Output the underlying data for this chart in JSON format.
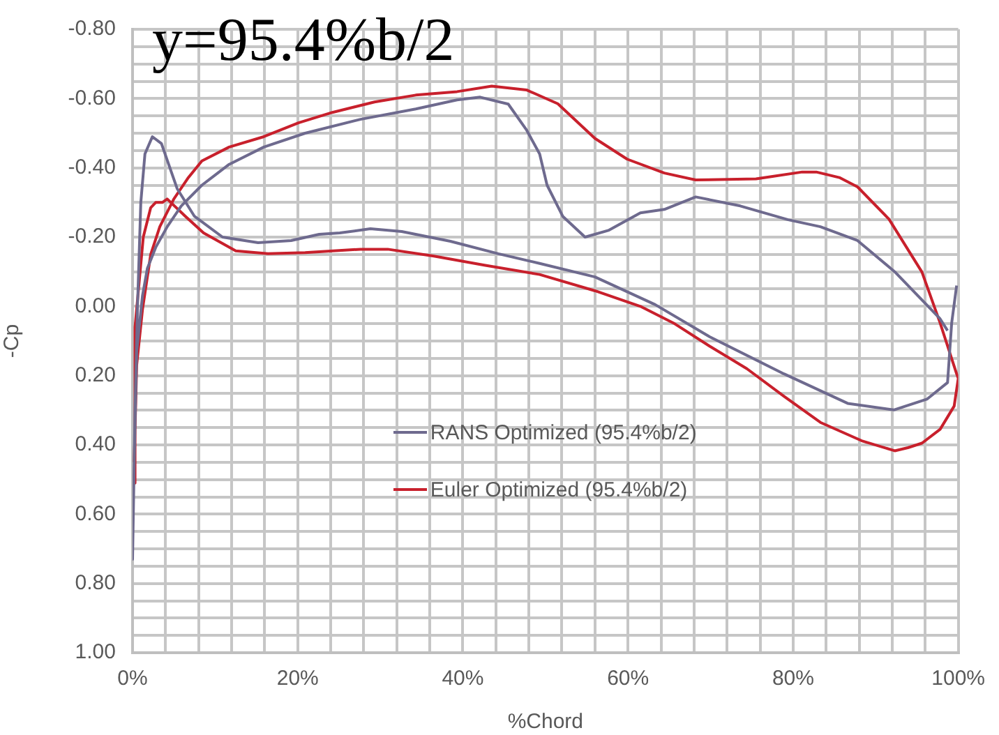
{
  "chart_data": {
    "type": "line",
    "title": "y=95.4%b/2",
    "xlabel": "%Chord",
    "ylabel": "-Cp",
    "xlim": [
      0,
      100
    ],
    "xticks": [
      {
        "value": 0,
        "label": "0%"
      },
      {
        "value": 4,
        "label": null
      },
      {
        "value": 8,
        "label": null
      },
      {
        "value": 12,
        "label": null
      },
      {
        "value": 16,
        "label": null
      },
      {
        "value": 20,
        "label": "20%"
      },
      {
        "value": 24,
        "label": null
      },
      {
        "value": 28,
        "label": null
      },
      {
        "value": 32,
        "label": null
      },
      {
        "value": 36,
        "label": null
      },
      {
        "value": 40,
        "label": "40%"
      },
      {
        "value": 44,
        "label": null
      },
      {
        "value": 48,
        "label": null
      },
      {
        "value": 52,
        "label": null
      },
      {
        "value": 56,
        "label": null
      },
      {
        "value": 60,
        "label": "60%"
      },
      {
        "value": 64,
        "label": null
      },
      {
        "value": 68,
        "label": null
      },
      {
        "value": 72,
        "label": null
      },
      {
        "value": 76,
        "label": null
      },
      {
        "value": 80,
        "label": "80%"
      },
      {
        "value": 84,
        "label": null
      },
      {
        "value": 88,
        "label": null
      },
      {
        "value": 92,
        "label": null
      },
      {
        "value": 96,
        "label": null
      },
      {
        "value": 100,
        "label": "100%"
      }
    ],
    "ylim": [
      1.0,
      -0.8
    ],
    "yticks": [
      {
        "value": -0.8,
        "label": "-0.80"
      },
      {
        "value": -0.75,
        "label": null
      },
      {
        "value": -0.7,
        "label": null
      },
      {
        "value": -0.65,
        "label": null
      },
      {
        "value": -0.6,
        "label": "-0.60"
      },
      {
        "value": -0.55,
        "label": null
      },
      {
        "value": -0.5,
        "label": null
      },
      {
        "value": -0.45,
        "label": null
      },
      {
        "value": -0.4,
        "label": "-0.40"
      },
      {
        "value": -0.35,
        "label": null
      },
      {
        "value": -0.3,
        "label": null
      },
      {
        "value": -0.25,
        "label": null
      },
      {
        "value": -0.2,
        "label": "-0.20"
      },
      {
        "value": -0.15,
        "label": null
      },
      {
        "value": -0.1,
        "label": null
      },
      {
        "value": -0.05,
        "label": null
      },
      {
        "value": 0,
        "label": "0.00"
      },
      {
        "value": 0.05,
        "label": null
      },
      {
        "value": 0.1,
        "label": null
      },
      {
        "value": 0.15,
        "label": null
      },
      {
        "value": 0.2,
        "label": "0.20"
      },
      {
        "value": 0.25,
        "label": null
      },
      {
        "value": 0.3,
        "label": null
      },
      {
        "value": 0.35,
        "label": null
      },
      {
        "value": 0.4,
        "label": "0.40"
      },
      {
        "value": 0.45,
        "label": null
      },
      {
        "value": 0.5,
        "label": null
      },
      {
        "value": 0.55,
        "label": null
      },
      {
        "value": 0.6,
        "label": "0.60"
      },
      {
        "value": 0.65,
        "label": null
      },
      {
        "value": 0.7,
        "label": null
      },
      {
        "value": 0.75,
        "label": null
      },
      {
        "value": 0.8,
        "label": "0.80"
      },
      {
        "value": 0.85,
        "label": null
      },
      {
        "value": 0.9,
        "label": null
      },
      {
        "value": 0.95,
        "label": null
      },
      {
        "value": 1.0,
        "label": "1.00"
      }
    ],
    "grid": true,
    "legend": "center",
    "marker": "none",
    "line_style": "solid",
    "series": [
      {
        "name": "RANS Optimized (95.4%b/2)",
        "color": "#6e6a8e",
        "x": [
          98.7,
          97.8,
          92.3,
          87.8,
          83.3,
          79.4,
          73.6,
          68.2,
          64.4,
          61.5,
          57.7,
          54.8,
          52.1,
          50.2,
          49.3,
          47.7,
          45.5,
          42.1,
          39.3,
          34.3,
          27.6,
          20.9,
          15.9,
          11.7,
          8.4,
          5.9,
          4.2,
          2.8,
          1.8,
          1.2,
          0.5,
          0.2,
          0,
          0.3,
          0.6,
          1,
          1.5,
          2.4,
          3.5,
          5.4,
          7.5,
          10.9,
          15.2,
          19.2,
          22.6,
          25.1,
          28.8,
          32.6,
          38.5,
          44.3,
          49.3,
          56,
          63.3,
          69.9,
          78.9,
          86.6,
          92.2,
          96.2,
          98.7,
          99.2,
          99.8
        ],
        "values": [
          0.07,
          0.036,
          -0.1,
          -0.19,
          -0.23,
          -0.25,
          -0.29,
          -0.316,
          -0.28,
          -0.27,
          -0.22,
          -0.2,
          -0.26,
          -0.35,
          -0.44,
          -0.51,
          -0.584,
          -0.604,
          -0.596,
          -0.57,
          -0.54,
          -0.5,
          -0.46,
          -0.41,
          -0.35,
          -0.29,
          -0.23,
          -0.17,
          -0.11,
          -0.03,
          0.13,
          0.45,
          0.73,
          0.3,
          0,
          -0.3,
          -0.44,
          -0.49,
          -0.47,
          -0.34,
          -0.26,
          -0.2,
          -0.184,
          -0.19,
          -0.208,
          -0.212,
          -0.224,
          -0.216,
          -0.188,
          -0.152,
          -0.124,
          -0.085,
          -0.005,
          0.088,
          0.195,
          0.28,
          0.299,
          0.268,
          0.22,
          0.048,
          -0.06
        ]
      },
      {
        "name": "Euler Optimized (95.4%b/2)",
        "color": "#c8202c",
        "x": [
          0.2,
          0.3,
          1.3,
          2.2,
          2.8,
          3.6,
          4.2,
          6.4,
          8.6,
          12.5,
          16.4,
          20.9,
          27.6,
          30.9,
          36.5,
          42.6,
          49.3,
          56,
          61.5,
          65.5,
          69.9,
          74.4,
          78.9,
          83.3,
          88.3,
          92.3,
          93.9,
          95.6,
          97.8,
          99.5,
          100,
          99.8,
          97.8,
          95.6,
          91.6,
          87.8,
          85.6,
          82.8,
          81.1,
          75.5,
          68.2,
          64.4,
          59.9,
          56,
          51.5,
          47.7,
          43.5,
          39.3,
          34.3,
          29.3,
          24.2,
          20.1,
          15.9,
          11.7,
          8.4,
          6.7,
          5,
          3.3,
          2.2,
          1.2,
          0.5,
          0.2
        ],
        "values": [
          0.51,
          0.06,
          -0.2,
          -0.285,
          -0.3,
          -0.3,
          -0.31,
          -0.26,
          -0.212,
          -0.16,
          -0.152,
          -0.155,
          -0.165,
          -0.165,
          -0.145,
          -0.119,
          -0.092,
          -0.045,
          0,
          0.048,
          0.115,
          0.18,
          0.26,
          0.335,
          0.388,
          0.417,
          0.408,
          0.395,
          0.355,
          0.288,
          0.208,
          0.195,
          0.048,
          -0.099,
          -0.252,
          -0.345,
          -0.372,
          -0.388,
          -0.388,
          -0.368,
          -0.365,
          -0.385,
          -0.425,
          -0.485,
          -0.585,
          -0.625,
          -0.636,
          -0.62,
          -0.61,
          -0.59,
          -0.56,
          -0.53,
          -0.49,
          -0.46,
          -0.42,
          -0.37,
          -0.31,
          -0.23,
          -0.15,
          0.01,
          0.17,
          0.45
        ]
      }
    ]
  }
}
